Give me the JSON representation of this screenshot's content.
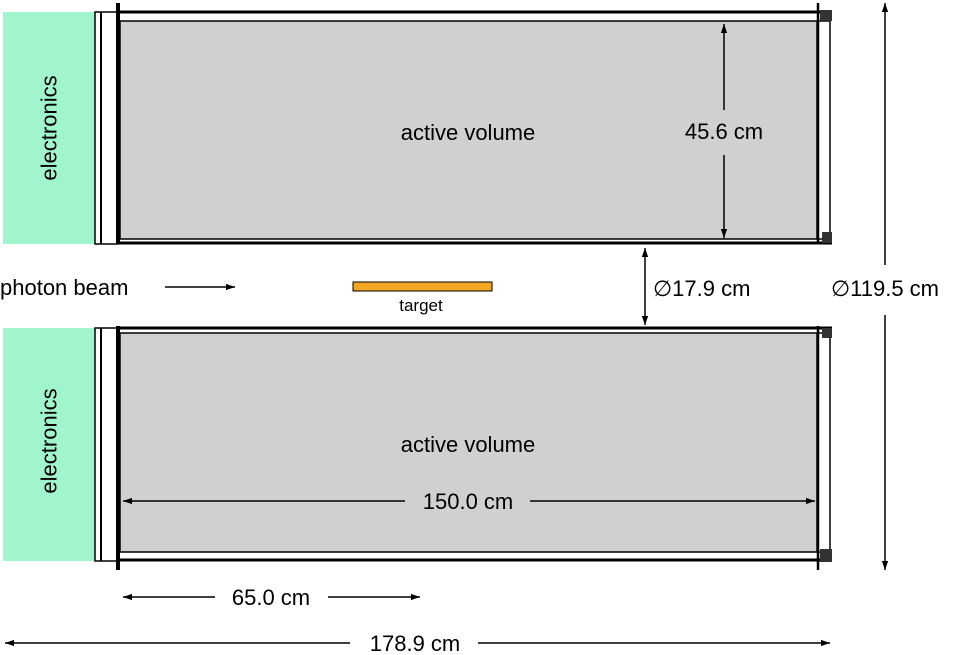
{
  "labels": {
    "electronics_top": "electronics",
    "electronics_bottom": "electronics",
    "active_volume_top": "active volume",
    "active_volume_bottom": "active volume",
    "photon_beam": "photon beam",
    "target": "target"
  },
  "dimensions": {
    "radial_gap": "45.6 cm",
    "inner_diameter": "∅17.9 cm",
    "outer_diameter": "∅119.5 cm",
    "active_length": "150.0 cm",
    "target_offset": "65.0 cm",
    "total_length": "178.9 cm"
  },
  "colors": {
    "electronics": "#a0f5cd",
    "active_volume": "#d0d0d0",
    "target": "#f5a623",
    "outline": "#000000"
  }
}
